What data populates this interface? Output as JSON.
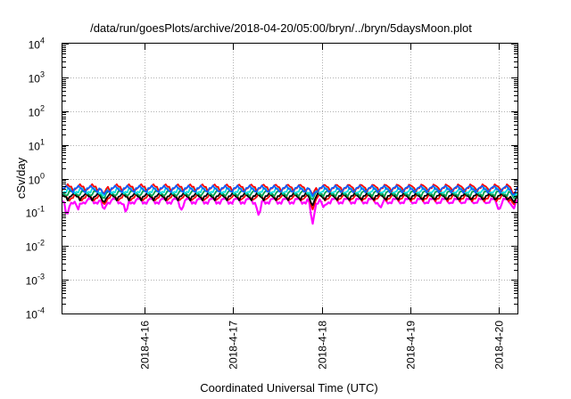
{
  "chart_data": {
    "type": "line",
    "title": "/data/run/goesPlots/archive/2018-04-20/05:00/bryn/../bryn/5daysMoon.plot",
    "xlabel": "Coordinated Universal Time (UTC)",
    "ylabel": "cSv/day",
    "yscale": "log",
    "ylim": [
      0.0001,
      10000
    ],
    "xlim": [
      "2018-04-15 01:48",
      "2018-04-20 05:00"
    ],
    "grid": true,
    "legend": "none",
    "y_ticks": [
      {
        "value": 0.0001,
        "base": "10",
        "exp": "-4"
      },
      {
        "value": 0.001,
        "base": "10",
        "exp": "-3"
      },
      {
        "value": 0.01,
        "base": "10",
        "exp": "-2"
      },
      {
        "value": 0.1,
        "base": "10",
        "exp": "-1"
      },
      {
        "value": 1,
        "base": "10",
        "exp": "0"
      },
      {
        "value": 10,
        "base": "10",
        "exp": "1"
      },
      {
        "value": 100,
        "base": "10",
        "exp": "2"
      },
      {
        "value": 1000,
        "base": "10",
        "exp": "3"
      },
      {
        "value": 10000,
        "base": "10",
        "exp": "4"
      }
    ],
    "x_ticks": [
      {
        "value": "2018-04-16",
        "label": "2018-4-16"
      },
      {
        "value": "2018-04-17",
        "label": "2018-4-17"
      },
      {
        "value": "2018-04-18",
        "label": "2018-4-18"
      },
      {
        "value": "2018-04-19",
        "label": "2018-4-19"
      },
      {
        "value": "2018-04-20",
        "label": "2018-4-20"
      }
    ],
    "series": [
      {
        "color": "#ff00ff",
        "level": 0.22,
        "dips": [
          {
            "x": "2018-04-15 03:00",
            "y": 0.08
          },
          {
            "x": "2018-04-15 06:00",
            "y": 0.12
          },
          {
            "x": "2018-04-15 13:00",
            "y": 0.12
          },
          {
            "x": "2018-04-15 19:00",
            "y": 0.1
          },
          {
            "x": "2018-04-16 10:00",
            "y": 0.12
          },
          {
            "x": "2018-04-17 07:00",
            "y": 0.08
          },
          {
            "x": "2018-04-17 21:30",
            "y": 0.045
          },
          {
            "x": "2018-04-18 00:30",
            "y": 0.14
          },
          {
            "x": "2018-04-18 16:00",
            "y": 0.14
          },
          {
            "x": "2018-04-20 00:00",
            "y": 0.12
          },
          {
            "x": "2018-04-20 04:00",
            "y": 0.13
          }
        ]
      },
      {
        "color": "#ff0000",
        "level": 0.28,
        "dips": [
          {
            "x": "2018-04-15 13:00",
            "y": 0.17
          },
          {
            "x": "2018-04-17 21:30",
            "y": 0.12
          },
          {
            "x": "2018-04-20 04:00",
            "y": 0.17
          }
        ]
      },
      {
        "color": "#000000",
        "level": 0.3,
        "dips": [
          {
            "x": "2018-04-15 13:00",
            "y": 0.2
          },
          {
            "x": "2018-04-17 21:30",
            "y": 0.16
          },
          {
            "x": "2018-04-20 04:00",
            "y": 0.2
          }
        ]
      },
      {
        "color": "#00a050",
        "level": 0.38,
        "dips": [
          {
            "x": "2018-04-15 13:00",
            "y": 0.26
          },
          {
            "x": "2018-04-17 21:30",
            "y": 0.24
          },
          {
            "x": "2018-04-20 04:00",
            "y": 0.26
          }
        ]
      },
      {
        "color": "#00e0e0",
        "level": 0.45,
        "dips": [
          {
            "x": "2018-04-15 13:00",
            "y": 0.3
          },
          {
            "x": "2018-04-17 21:30",
            "y": 0.28
          },
          {
            "x": "2018-04-20 04:00",
            "y": 0.3
          }
        ]
      },
      {
        "color": "#ff0000",
        "level": 0.55,
        "dips": [
          {
            "x": "2018-04-15 13:00",
            "y": 0.35
          },
          {
            "x": "2018-04-17 21:30",
            "y": 0.32
          },
          {
            "x": "2018-04-20 04:00",
            "y": 0.35
          }
        ]
      },
      {
        "color": "#1060ff",
        "level": 0.5,
        "dips": [
          {
            "x": "2018-04-15 13:00",
            "y": 0.33
          },
          {
            "x": "2018-04-17 21:30",
            "y": 0.3
          },
          {
            "x": "2018-04-20 04:00",
            "y": 0.33
          }
        ]
      }
    ]
  }
}
